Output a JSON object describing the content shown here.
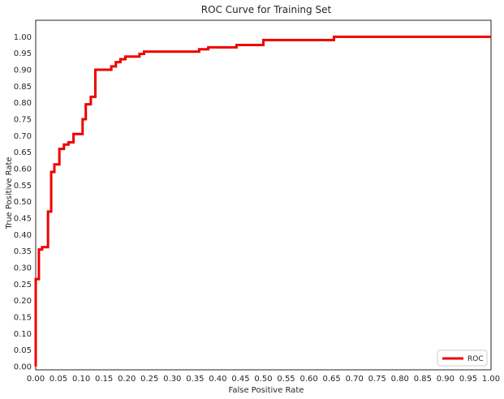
{
  "chart_data": {
    "type": "line",
    "title": "ROC Curve for Training Set",
    "xlabel": "False Positive Rate",
    "ylabel": "True Positive Rate",
    "xlim": [
      0,
      1
    ],
    "ylim": [
      -0.01,
      1.05
    ],
    "xticks": [
      "0.00",
      "0.05",
      "0.10",
      "0.15",
      "0.20",
      "0.25",
      "0.30",
      "0.35",
      "0.40",
      "0.45",
      "0.50",
      "0.55",
      "0.60",
      "0.65",
      "0.70",
      "0.75",
      "0.80",
      "0.85",
      "0.90",
      "0.95",
      "1.00"
    ],
    "yticks": [
      "0.00",
      "0.05",
      "0.10",
      "0.15",
      "0.20",
      "0.25",
      "0.30",
      "0.35",
      "0.40",
      "0.45",
      "0.50",
      "0.55",
      "0.60",
      "0.65",
      "0.70",
      "0.75",
      "0.80",
      "0.85",
      "0.90",
      "0.95",
      "1.00"
    ],
    "grid": false,
    "legend_position": "lower-right",
    "colors": {
      "roc_line": "#ee0000",
      "axes_frame": "#262626",
      "background": "#ffffff"
    },
    "series": [
      {
        "name": "ROC",
        "x": [
          0.0,
          0.0,
          0.007,
          0.007,
          0.014,
          0.014,
          0.027,
          0.027,
          0.034,
          0.034,
          0.041,
          0.041,
          0.052,
          0.052,
          0.062,
          0.062,
          0.072,
          0.072,
          0.083,
          0.083,
          0.103,
          0.103,
          0.11,
          0.11,
          0.121,
          0.121,
          0.131,
          0.131,
          0.166,
          0.166,
          0.176,
          0.176,
          0.186,
          0.186,
          0.197,
          0.197,
          0.228,
          0.228,
          0.238,
          0.238,
          0.359,
          0.359,
          0.379,
          0.379,
          0.441,
          0.441,
          0.5,
          0.5,
          0.545,
          0.545,
          0.655,
          0.655,
          1.0
        ],
        "y": [
          0.0,
          0.265,
          0.265,
          0.355,
          0.355,
          0.362,
          0.362,
          0.47,
          0.47,
          0.59,
          0.59,
          0.613,
          0.613,
          0.66,
          0.66,
          0.673,
          0.673,
          0.68,
          0.68,
          0.705,
          0.705,
          0.75,
          0.75,
          0.795,
          0.795,
          0.818,
          0.818,
          0.9,
          0.9,
          0.91,
          0.91,
          0.923,
          0.923,
          0.932,
          0.932,
          0.94,
          0.94,
          0.948,
          0.948,
          0.955,
          0.955,
          0.962,
          0.962,
          0.968,
          0.968,
          0.975,
          0.975,
          0.99,
          0.99,
          0.99,
          0.99,
          1.0,
          1.0
        ]
      }
    ]
  }
}
